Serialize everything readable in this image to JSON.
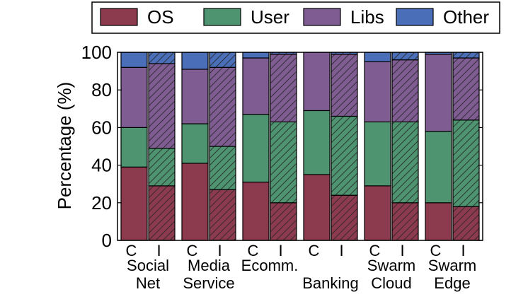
{
  "chart_data": {
    "type": "bar",
    "stacked": true,
    "ylabel": "Percentage (%)",
    "ylim": [
      0,
      100
    ],
    "yticks": [
      0,
      20,
      40,
      60,
      80,
      100
    ],
    "grid": false,
    "legend_position": "top",
    "bar_labels": [
      "C",
      "I"
    ],
    "hatched_bar": "I",
    "groups": [
      {
        "label_lines": [
          "Social",
          "Net"
        ],
        "bars": [
          {
            "label": "C",
            "values": [
              39,
              21,
              32,
              8
            ]
          },
          {
            "label": "I",
            "values": [
              29,
              20,
              45,
              6
            ]
          }
        ]
      },
      {
        "label_lines": [
          "Media",
          "Service"
        ],
        "bars": [
          {
            "label": "C",
            "values": [
              41,
              21,
              29,
              9
            ]
          },
          {
            "label": "I",
            "values": [
              27,
              23,
              42,
              8
            ]
          }
        ]
      },
      {
        "label_lines": [
          "Ecomm.",
          ""
        ],
        "bars": [
          {
            "label": "C",
            "values": [
              31,
              36,
              30,
              3
            ]
          },
          {
            "label": "I",
            "values": [
              20,
              43,
              36,
              1
            ]
          }
        ]
      },
      {
        "label_lines": [
          "",
          "Banking"
        ],
        "bars": [
          {
            "label": "C",
            "values": [
              35,
              34,
              31,
              0
            ]
          },
          {
            "label": "I",
            "values": [
              24,
              42,
              33,
              1
            ]
          }
        ]
      },
      {
        "label_lines": [
          "Swarm",
          "Cloud"
        ],
        "bars": [
          {
            "label": "C",
            "values": [
              29,
              34,
              32,
              5
            ]
          },
          {
            "label": "I",
            "values": [
              20,
              43,
              33,
              4
            ]
          }
        ]
      },
      {
        "label_lines": [
          "Swarm",
          "Edge"
        ],
        "bars": [
          {
            "label": "C",
            "values": [
              20,
              38,
              41,
              1
            ]
          },
          {
            "label": "I",
            "values": [
              18,
              46,
              33,
              3
            ]
          }
        ]
      }
    ],
    "series": [
      {
        "name": "OS",
        "color": "#8c3a4e"
      },
      {
        "name": "User",
        "color": "#4e9470"
      },
      {
        "name": "Libs",
        "color": "#7f5c92"
      },
      {
        "name": "Other",
        "color": "#4a6fb8"
      }
    ]
  }
}
